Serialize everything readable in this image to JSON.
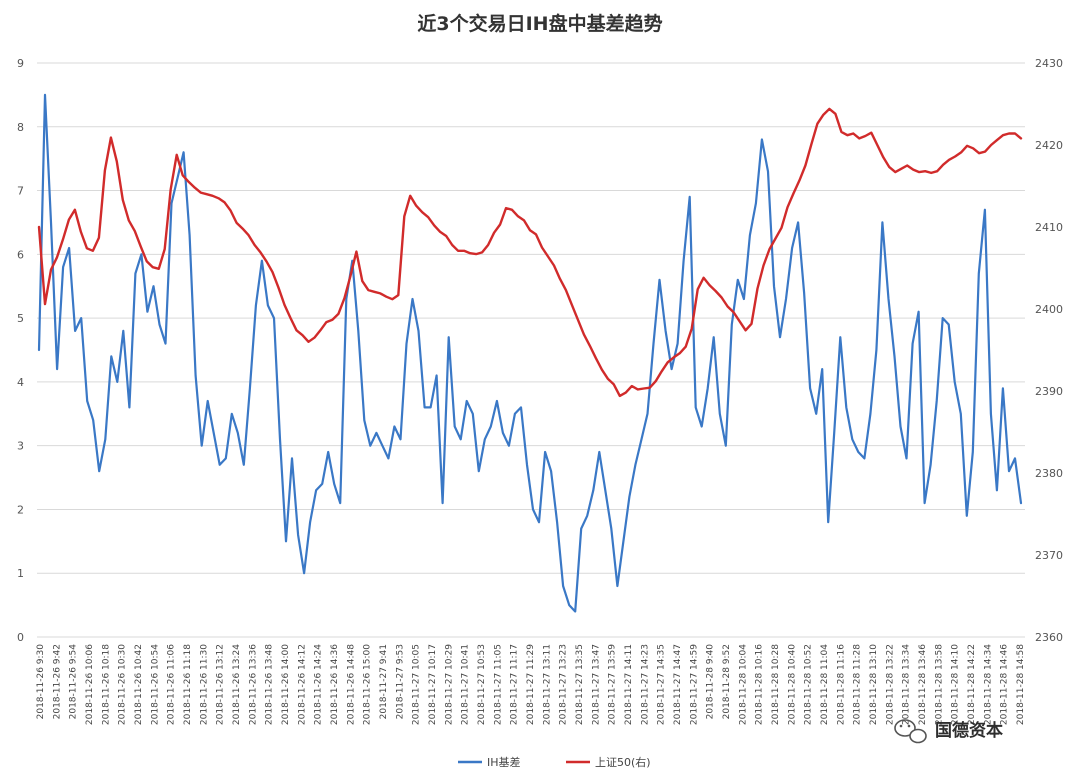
{
  "chart_data": {
    "type": "line",
    "title": "近3个交易日IH盘中基差趋势",
    "y_left": {
      "min": 0,
      "max": 9,
      "ticks": [
        0,
        1,
        2,
        3,
        4,
        5,
        6,
        7,
        8,
        9
      ]
    },
    "y_right": {
      "min": 2360,
      "max": 2430,
      "ticks": [
        2360,
        2370,
        2380,
        2390,
        2400,
        2410,
        2420,
        2430
      ]
    },
    "x_tick_labels": [
      "2018-11-26 9:30",
      "2018-11-26 9:42",
      "2018-11-26 9:54",
      "2018-11-26 10:06",
      "2018-11-26 10:18",
      "2018-11-26 10:30",
      "2018-11-26 10:42",
      "2018-11-26 10:54",
      "2018-11-26 11:06",
      "2018-11-26 11:18",
      "2018-11-26 11:30",
      "2018-11-26 13:12",
      "2018-11-26 13:24",
      "2018-11-26 13:36",
      "2018-11-26 13:48",
      "2018-11-26 14:00",
      "2018-11-26 14:12",
      "2018-11-26 14:24",
      "2018-11-26 14:36",
      "2018-11-26 14:48",
      "2018-11-26 15:00",
      "2018-11-27 9:41",
      "2018-11-27 9:53",
      "2018-11-27 10:05",
      "2018-11-27 10:17",
      "2018-11-27 10:29",
      "2018-11-27 10:41",
      "2018-11-27 10:53",
      "2018-11-27 11:05",
      "2018-11-27 11:17",
      "2018-11-27 11:29",
      "2018-11-27 13:11",
      "2018-11-27 13:23",
      "2018-11-27 13:35",
      "2018-11-27 13:47",
      "2018-11-27 13:59",
      "2018-11-27 14:11",
      "2018-11-27 14:23",
      "2018-11-27 14:35",
      "2018-11-27 14:47",
      "2018-11-27 14:59",
      "2018-11-28 9:40",
      "2018-11-28 9:52",
      "2018-11-28 10:04",
      "2018-11-28 10:16",
      "2018-11-28 10:28",
      "2018-11-28 10:40",
      "2018-11-28 10:52",
      "2018-11-28 11:04",
      "2018-11-28 11:16",
      "2018-11-28 11:28",
      "2018-11-28 13:10",
      "2018-11-28 13:22",
      "2018-11-28 13:34",
      "2018-11-28 13:46",
      "2018-11-28 13:58",
      "2018-11-28 14:10",
      "2018-11-28 14:22",
      "2018-11-28 14:34",
      "2018-11-28 14:46",
      "2018-11-28 14:58"
    ],
    "series": [
      {
        "name": "IH基差",
        "axis": "left",
        "color": "#3a78c6",
        "values": [
          4.5,
          8.5,
          6.5,
          4.2,
          5.8,
          6.1,
          4.8,
          5.0,
          3.7,
          3.4,
          2.6,
          3.1,
          4.4,
          4.0,
          4.8,
          3.6,
          5.7,
          6.0,
          5.1,
          5.5,
          4.9,
          4.6,
          6.8,
          7.2,
          7.6,
          6.3,
          4.1,
          3.0,
          3.7,
          3.2,
          2.7,
          2.8,
          3.5,
          3.2,
          2.7,
          3.9,
          5.2,
          5.9,
          5.2,
          5.0,
          3.1,
          1.5,
          2.8,
          1.6,
          1.0,
          1.8,
          2.3,
          2.4,
          2.9,
          2.4,
          2.1,
          5.3,
          5.9,
          4.8,
          3.4,
          3.0,
          3.2,
          3.0,
          2.8,
          3.3,
          3.1,
          4.6,
          5.3,
          4.8,
          3.6,
          3.6,
          4.1,
          2.1,
          4.7,
          3.3,
          3.1,
          3.7,
          3.5,
          2.6,
          3.1,
          3.3,
          3.7,
          3.2,
          3.0,
          3.5,
          3.6,
          2.7,
          2.0,
          1.8,
          2.9,
          2.6,
          1.8,
          0.8,
          0.5,
          0.4,
          1.7,
          1.9,
          2.3,
          2.9,
          2.3,
          1.7,
          0.8,
          1.5,
          2.2,
          2.7,
          3.1,
          3.5,
          4.6,
          5.6,
          4.8,
          4.2,
          4.6,
          5.9,
          6.9,
          3.6,
          3.3,
          3.9,
          4.7,
          3.5,
          3.0,
          4.9,
          5.6,
          5.3,
          6.3,
          6.8,
          7.8,
          7.3,
          5.5,
          4.7,
          5.3,
          6.1,
          6.5,
          5.4,
          3.9,
          3.5,
          4.2,
          1.8,
          3.2,
          4.7,
          3.6,
          3.1,
          2.9,
          2.8,
          3.5,
          4.5,
          6.5,
          5.3,
          4.4,
          3.3,
          2.8,
          4.6,
          5.1,
          2.1,
          2.7,
          3.7,
          5.0,
          4.9,
          4.0,
          3.5,
          1.9,
          2.9,
          5.7,
          6.7,
          3.5,
          2.3,
          3.9,
          2.6,
          2.8,
          2.1
        ],
        "y_range": [
          0.1,
          8.5
        ]
      },
      {
        "name": "上证50(右)",
        "axis": "right",
        "color": "#d12b2b",
        "values": [
          2410.0,
          2400.6,
          2404.8,
          2406.3,
          2408.5,
          2410.9,
          2412.1,
          2409.4,
          2407.4,
          2407.1,
          2408.7,
          2416.9,
          2420.9,
          2418.0,
          2413.3,
          2410.8,
          2409.5,
          2407.6,
          2405.8,
          2405.1,
          2404.9,
          2407.3,
          2414.6,
          2418.8,
          2416.3,
          2415.5,
          2414.8,
          2414.2,
          2414.0,
          2413.8,
          2413.5,
          2413.0,
          2412.0,
          2410.5,
          2409.8,
          2409.0,
          2407.8,
          2406.9,
          2405.8,
          2404.5,
          2402.6,
          2400.5,
          2398.9,
          2397.4,
          2396.8,
          2396.0,
          2396.5,
          2397.4,
          2398.4,
          2398.7,
          2399.4,
          2401.3,
          2404.0,
          2407.0,
          2403.4,
          2402.3,
          2402.1,
          2401.9,
          2401.5,
          2401.2,
          2401.7,
          2411.3,
          2413.8,
          2412.6,
          2411.8,
          2411.2,
          2410.2,
          2409.4,
          2408.9,
          2407.8,
          2407.1,
          2407.1,
          2406.8,
          2406.7,
          2406.9,
          2407.8,
          2409.3,
          2410.3,
          2412.3,
          2412.1,
          2411.3,
          2410.8,
          2409.6,
          2409.1,
          2407.5,
          2406.4,
          2405.3,
          2403.7,
          2402.3,
          2400.5,
          2398.7,
          2396.9,
          2395.5,
          2394.0,
          2392.6,
          2391.5,
          2390.8,
          2389.4,
          2389.8,
          2390.6,
          2390.2,
          2390.3,
          2390.4,
          2391.2,
          2392.4,
          2393.5,
          2394.1,
          2394.6,
          2395.4,
          2397.6,
          2402.4,
          2403.8,
          2402.9,
          2402.2,
          2401.4,
          2400.3,
          2399.6,
          2398.5,
          2397.4,
          2398.2,
          2402.5,
          2405.3,
          2407.3,
          2408.6,
          2409.9,
          2412.4,
          2414.1,
          2415.7,
          2417.5,
          2420.1,
          2422.6,
          2423.7,
          2424.4,
          2423.8,
          2421.6,
          2421.2,
          2421.4,
          2420.8,
          2421.1,
          2421.5,
          2420.0,
          2418.5,
          2417.3,
          2416.7,
          2417.1,
          2417.5,
          2417.0,
          2416.7,
          2416.8,
          2416.6,
          2416.8,
          2417.6,
          2418.2,
          2418.6,
          2419.1,
          2419.9,
          2419.6,
          2419.0,
          2419.2,
          2420.0,
          2420.6,
          2421.2,
          2421.4,
          2421.4,
          2420.8
        ],
        "y_range": [
          2388.5,
          2425.7
        ]
      }
    ],
    "legend": {
      "placement": "bottom-center"
    },
    "grid": {
      "horizontal": true,
      "vertical": false
    }
  },
  "legend_items": [
    {
      "label": "IH基差",
      "color": "#3a78c6"
    },
    {
      "label": "上证50(右)",
      "color": "#d12b2b"
    }
  ],
  "watermark": {
    "text": "国德资本",
    "icon": "wechat-icon"
  },
  "colors": {
    "grid": "#d9d9d9",
    "background": "#ffffff"
  }
}
